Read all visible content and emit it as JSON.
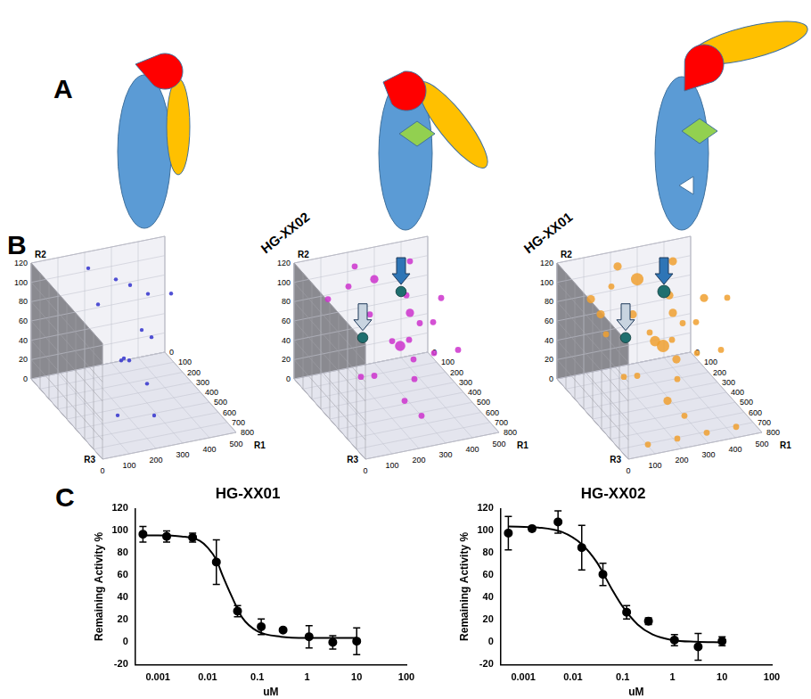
{
  "panel_labels": [
    "A",
    "B",
    "C"
  ],
  "scatter3d": {
    "axes": {
      "R1": {
        "label": "R1",
        "lim": [
          0,
          500
        ],
        "ticks": [
          0,
          100,
          200,
          300,
          400,
          500
        ]
      },
      "R2": {
        "label": "R2",
        "lim": [
          0,
          120
        ],
        "ticks": [
          0,
          20,
          40,
          60,
          80,
          100,
          120
        ]
      },
      "R3": {
        "label": "R3",
        "lim": [
          0,
          800
        ],
        "ticks": [
          0,
          100,
          200,
          300,
          400,
          500,
          600,
          700,
          800
        ]
      }
    },
    "plots": [
      {
        "color": "#3333cc",
        "points": [
          [
            150,
            100,
            300,
            1
          ],
          [
            250,
            110,
            200,
            1
          ],
          [
            320,
            95,
            150,
            1
          ],
          [
            200,
            60,
            500,
            1
          ],
          [
            380,
            40,
            100,
            1
          ],
          [
            120,
            80,
            650,
            1
          ],
          [
            300,
            20,
            400,
            1
          ],
          [
            420,
            70,
            50,
            1
          ],
          [
            260,
            10,
            600,
            1
          ],
          [
            180,
            115,
            100,
            1
          ],
          [
            350,
            55,
            300,
            1
          ],
          [
            90,
            30,
            700,
            1
          ],
          [
            440,
            90,
            250,
            1
          ],
          [
            230,
            45,
            350,
            1
          ]
        ]
      },
      {
        "title": "HG-XX02",
        "color": "#cc33cc",
        "highlight_color": "#1f6f6f",
        "points": [
          [
            150,
            100,
            400,
            2
          ],
          [
            250,
            105,
            150,
            3
          ],
          [
            320,
            100,
            300,
            2
          ],
          [
            400,
            110,
            100,
            2
          ],
          [
            200,
            80,
            500,
            2
          ],
          [
            350,
            75,
            250,
            3
          ],
          [
            100,
            60,
            600,
            2
          ],
          [
            280,
            55,
            350,
            4
          ],
          [
            420,
            50,
            150,
            2
          ],
          [
            180,
            40,
            700,
            2
          ],
          [
            300,
            30,
            450,
            2
          ],
          [
            380,
            20,
            200,
            2
          ],
          [
            120,
            115,
            250,
            2
          ],
          [
            450,
            90,
            300,
            2
          ],
          [
            230,
            90,
            600,
            2
          ],
          [
            60,
            100,
            200,
            2
          ],
          [
            340,
            65,
            550,
            2
          ],
          [
            260,
            15,
            650,
            2
          ],
          [
            150,
            25,
            300,
            2
          ],
          [
            480,
            45,
            400,
            2
          ],
          [
            210,
            110,
            50,
            2
          ],
          [
            370,
            85,
            450,
            2
          ]
        ],
        "highlighted": [
          {
            "point": [
              40,
              108,
              650,
              4
            ],
            "arrow_color": "#c8d4e0"
          },
          {
            "point": [
              300,
              105,
              300,
              4
            ],
            "arrow_color": "#2e75b6"
          }
        ]
      },
      {
        "title": "HG-XX01",
        "color": "#f0a030",
        "highlight_color": "#1f6f6f",
        "points": [
          [
            150,
            100,
            400,
            3
          ],
          [
            250,
            105,
            150,
            5
          ],
          [
            320,
            100,
            300,
            3
          ],
          [
            400,
            110,
            100,
            3
          ],
          [
            200,
            80,
            500,
            4
          ],
          [
            350,
            75,
            250,
            3
          ],
          [
            100,
            60,
            600,
            2
          ],
          [
            280,
            55,
            350,
            5
          ],
          [
            420,
            50,
            150,
            2
          ],
          [
            180,
            40,
            700,
            3
          ],
          [
            300,
            30,
            450,
            2
          ],
          [
            380,
            20,
            200,
            3
          ],
          [
            120,
            115,
            250,
            2
          ],
          [
            450,
            90,
            300,
            3
          ],
          [
            230,
            90,
            600,
            2
          ],
          [
            60,
            100,
            200,
            3
          ],
          [
            340,
            65,
            550,
            2
          ],
          [
            260,
            15,
            650,
            2
          ],
          [
            150,
            25,
            300,
            2
          ],
          [
            480,
            45,
            400,
            2
          ],
          [
            210,
            110,
            50,
            3
          ],
          [
            370,
            85,
            450,
            2
          ],
          [
            90,
            5,
            750,
            2
          ],
          [
            200,
            5,
            750,
            2
          ],
          [
            310,
            5,
            750,
            2
          ],
          [
            420,
            5,
            750,
            2
          ],
          [
            130,
            70,
            100,
            3
          ],
          [
            330,
            35,
            50,
            2
          ],
          [
            470,
            110,
            500,
            2
          ],
          [
            50,
            85,
            400,
            2
          ]
        ],
        "highlighted": [
          {
            "point": [
              40,
              108,
              650,
              4
            ],
            "arrow_color": "#c8d4e0"
          },
          {
            "point": [
              300,
              105,
              300,
              5
            ],
            "arrow_color": "#2e75b6"
          }
        ]
      }
    ]
  },
  "chart_data": [
    {
      "type": "scatter",
      "title": "HG-XX01",
      "x_label": "uM",
      "y_label": "Remaining Activity %",
      "log": "x",
      "grid": false,
      "xlim": [
        0.00035,
        100
      ],
      "xticks": [
        0.001,
        0.01,
        0.1,
        1,
        10,
        100
      ],
      "ylim": [
        -20,
        120
      ],
      "yticks": [
        -20,
        0,
        20,
        40,
        60,
        80,
        100,
        120
      ],
      "series": [
        {
          "type": "scatter",
          "marker": "circle",
          "color": "#000000",
          "x": [
            0.0005,
            0.0015,
            0.005,
            0.015,
            0.04,
            0.12,
            0.33,
            1.1,
            3.3,
            10
          ],
          "values": [
            97,
            95,
            94,
            72,
            28,
            14,
            11,
            5,
            0,
            1
          ],
          "error": [
            7,
            5,
            4,
            20,
            5,
            7,
            null,
            10,
            6,
            12
          ]
        },
        {
          "type": "line",
          "line_style": "solid",
          "color": "#000000",
          "x": [
            0.0005,
            0.001,
            0.003,
            0.007,
            0.01,
            0.015,
            0.02,
            0.03,
            0.05,
            0.1,
            0.3,
            1,
            3,
            10
          ],
          "values": [
            96,
            96,
            95,
            91,
            85,
            74,
            60,
            42,
            22,
            10,
            5,
            4,
            4,
            4
          ]
        }
      ]
    },
    {
      "type": "scatter",
      "title": "HG-XX02",
      "x_label": "uM",
      "y_label": "Remaining Activity %",
      "log": "x",
      "grid": false,
      "xlim": [
        0.00035,
        100
      ],
      "xticks": [
        0.001,
        0.01,
        0.1,
        1,
        10,
        100
      ],
      "ylim": [
        -20,
        120
      ],
      "yticks": [
        -20,
        0,
        20,
        40,
        60,
        80,
        100,
        120
      ],
      "series": [
        {
          "type": "scatter",
          "marker": "circle",
          "color": "#000000",
          "x": [
            0.0005,
            0.0015,
            0.005,
            0.015,
            0.04,
            0.12,
            0.33,
            1.1,
            3.3,
            10
          ],
          "values": [
            98,
            102,
            108,
            85,
            61,
            27,
            19,
            2,
            -4,
            1
          ],
          "error": [
            15,
            2,
            10,
            20,
            10,
            6,
            3,
            5,
            12,
            4
          ]
        },
        {
          "type": "line",
          "line_style": "solid",
          "color": "#000000",
          "x": [
            0.0005,
            0.002,
            0.006,
            0.015,
            0.03,
            0.06,
            0.1,
            0.2,
            0.4,
            1,
            3,
            10
          ],
          "values": [
            104,
            103,
            99,
            88,
            72,
            48,
            32,
            16,
            7,
            2,
            0.5,
            0
          ]
        }
      ]
    }
  ]
}
